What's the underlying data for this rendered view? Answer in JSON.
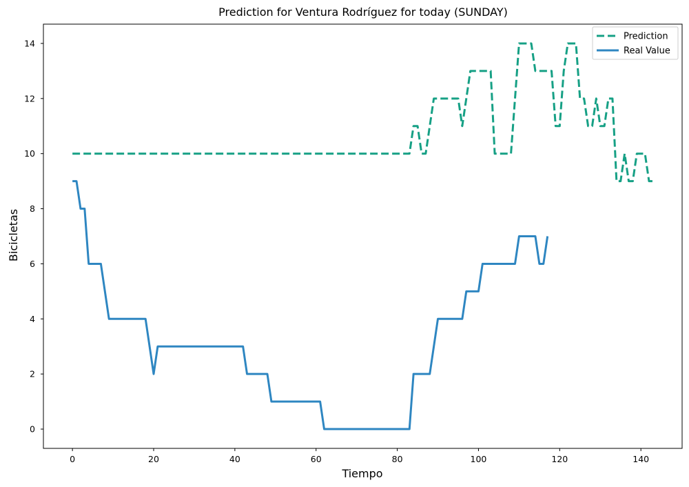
{
  "chart_data": {
    "type": "line",
    "title": "Prediction for Ventura Rodríguez for today (SUNDAY)",
    "xlabel": "Tiempo",
    "ylabel": "Bicicletas",
    "xlim": [
      -7.15,
      150.15
    ],
    "ylim": [
      -0.7,
      14.7
    ],
    "xticks": [
      0,
      20,
      40,
      60,
      80,
      100,
      120,
      140
    ],
    "yticks": [
      0,
      2,
      4,
      6,
      8,
      10,
      12,
      14
    ],
    "grid": false,
    "legend_position": "top-right",
    "series": [
      {
        "name": "Prediction",
        "color": "#16a085",
        "style": "dashed",
        "x": [
          0,
          1,
          2,
          3,
          4,
          5,
          6,
          7,
          8,
          9,
          10,
          11,
          12,
          13,
          14,
          15,
          16,
          17,
          18,
          19,
          20,
          21,
          22,
          23,
          24,
          25,
          26,
          27,
          28,
          29,
          30,
          31,
          32,
          33,
          34,
          35,
          36,
          37,
          38,
          39,
          40,
          41,
          42,
          43,
          44,
          45,
          46,
          47,
          48,
          49,
          50,
          51,
          52,
          53,
          54,
          55,
          56,
          57,
          58,
          59,
          60,
          61,
          62,
          63,
          64,
          65,
          66,
          67,
          68,
          69,
          70,
          71,
          72,
          73,
          74,
          75,
          76,
          77,
          78,
          79,
          80,
          81,
          82,
          83,
          84,
          85,
          86,
          87,
          88,
          89,
          90,
          91,
          92,
          93,
          94,
          95,
          96,
          97,
          98,
          99,
          100,
          101,
          102,
          103,
          104,
          105,
          106,
          107,
          108,
          109,
          110,
          111,
          112,
          113,
          114,
          115,
          116,
          117,
          118,
          119,
          120,
          121,
          122,
          123,
          124,
          125,
          126,
          127,
          128,
          129,
          130,
          131,
          132,
          133,
          134,
          135,
          136,
          137,
          138,
          139,
          140,
          141,
          142,
          143
        ],
        "values": [
          10,
          10,
          10,
          10,
          10,
          10,
          10,
          10,
          10,
          10,
          10,
          10,
          10,
          10,
          10,
          10,
          10,
          10,
          10,
          10,
          10,
          10,
          10,
          10,
          10,
          10,
          10,
          10,
          10,
          10,
          10,
          10,
          10,
          10,
          10,
          10,
          10,
          10,
          10,
          10,
          10,
          10,
          10,
          10,
          10,
          10,
          10,
          10,
          10,
          10,
          10,
          10,
          10,
          10,
          10,
          10,
          10,
          10,
          10,
          10,
          10,
          10,
          10,
          10,
          10,
          10,
          10,
          10,
          10,
          10,
          10,
          10,
          10,
          10,
          10,
          10,
          10,
          10,
          10,
          10,
          10,
          10,
          10,
          10,
          11,
          11,
          10,
          10,
          11,
          12,
          12,
          12,
          12,
          12,
          12,
          12,
          11,
          12,
          13,
          13,
          13,
          13,
          13,
          13,
          10,
          10,
          10,
          10,
          10,
          12,
          14,
          14,
          14,
          14,
          13,
          13,
          13,
          13,
          13,
          11,
          11,
          13,
          14,
          14,
          14,
          12,
          12,
          11,
          11,
          12,
          11,
          11,
          12,
          12,
          9,
          9,
          10,
          9,
          9,
          10,
          10,
          10,
          9,
          9
        ]
      },
      {
        "name": "Real Value",
        "color": "#2e86c1",
        "style": "solid",
        "x": [
          0,
          1,
          2,
          3,
          4,
          5,
          6,
          7,
          8,
          9,
          10,
          11,
          12,
          13,
          14,
          15,
          16,
          17,
          18,
          19,
          20,
          21,
          22,
          23,
          24,
          25,
          26,
          27,
          28,
          29,
          30,
          31,
          32,
          33,
          34,
          35,
          36,
          37,
          38,
          39,
          40,
          41,
          42,
          43,
          44,
          45,
          46,
          47,
          48,
          49,
          50,
          51,
          52,
          53,
          54,
          55,
          56,
          57,
          58,
          59,
          60,
          61,
          62,
          63,
          64,
          65,
          66,
          67,
          68,
          69,
          70,
          71,
          72,
          73,
          74,
          75,
          76,
          77,
          78,
          79,
          80,
          81,
          82,
          83,
          84,
          85,
          86,
          87,
          88,
          89,
          90,
          91,
          92,
          93,
          94,
          95,
          96,
          97,
          98,
          99,
          100,
          101,
          102,
          103,
          104,
          105,
          106,
          107,
          108,
          109,
          110,
          111,
          112,
          113,
          114,
          115,
          116,
          117
        ],
        "values": [
          9,
          9,
          8,
          8,
          6,
          6,
          6,
          6,
          5,
          4,
          4,
          4,
          4,
          4,
          4,
          4,
          4,
          4,
          4,
          3,
          2,
          3,
          3,
          3,
          3,
          3,
          3,
          3,
          3,
          3,
          3,
          3,
          3,
          3,
          3,
          3,
          3,
          3,
          3,
          3,
          3,
          3,
          3,
          2,
          2,
          2,
          2,
          2,
          2,
          1,
          1,
          1,
          1,
          1,
          1,
          1,
          1,
          1,
          1,
          1,
          1,
          1,
          0,
          0,
          0,
          0,
          0,
          0,
          0,
          0,
          0,
          0,
          0,
          0,
          0,
          0,
          0,
          0,
          0,
          0,
          0,
          0,
          0,
          0,
          2,
          2,
          2,
          2,
          2,
          3,
          4,
          4,
          4,
          4,
          4,
          4,
          4,
          5,
          5,
          5,
          5,
          6,
          6,
          6,
          6,
          6,
          6,
          6,
          6,
          6,
          7,
          7,
          7,
          7,
          7,
          6,
          6,
          7
        ]
      }
    ]
  }
}
